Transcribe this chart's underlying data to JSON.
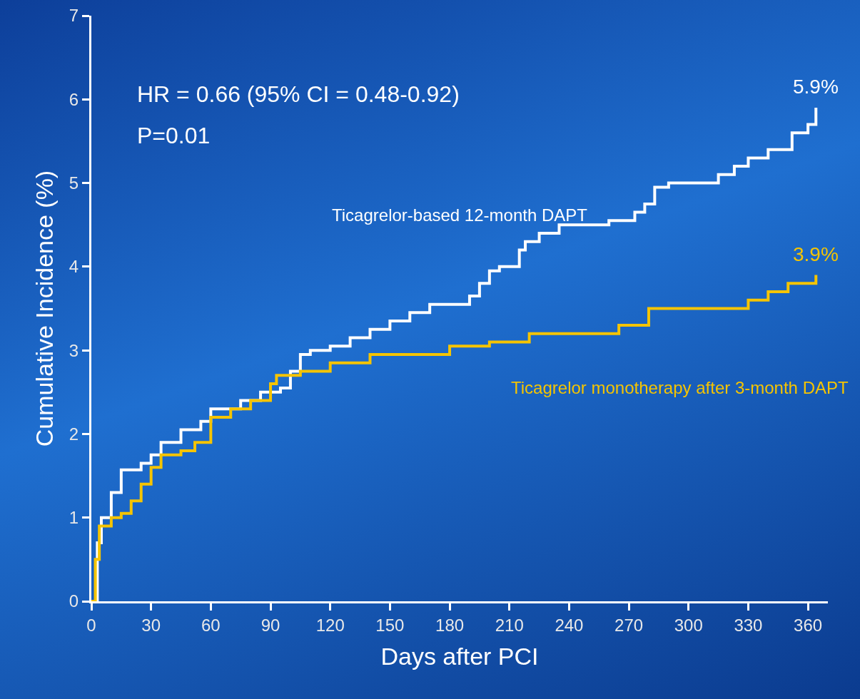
{
  "chart_data": {
    "type": "step",
    "xlabel": "Days after PCI",
    "ylabel": "Cumulative Incidence (%)",
    "xlim": [
      0,
      370
    ],
    "xticks": [
      0,
      30,
      60,
      90,
      120,
      150,
      180,
      210,
      240,
      270,
      300,
      330,
      360
    ],
    "ylim": [
      0,
      7
    ],
    "yticks": [
      0,
      1,
      2,
      3,
      4,
      5,
      6,
      7
    ],
    "grid": false,
    "legend": false,
    "marker": "none",
    "line_style": "solid",
    "series": [
      {
        "name": "Ticagrelor-based 12-month DAPT",
        "color": "#ffffff",
        "x": [
          0,
          3,
          5,
          10,
          15,
          25,
          30,
          35,
          45,
          55,
          60,
          75,
          85,
          95,
          100,
          105,
          110,
          120,
          130,
          140,
          150,
          160,
          170,
          190,
          195,
          200,
          205,
          215,
          218,
          225,
          235,
          260,
          273,
          278,
          283,
          290,
          315,
          323,
          330,
          340,
          352,
          360,
          364
        ],
        "values": [
          0,
          0.7,
          1.0,
          1.3,
          1.57,
          1.65,
          1.75,
          1.9,
          2.05,
          2.15,
          2.3,
          2.4,
          2.5,
          2.55,
          2.75,
          2.95,
          3.0,
          3.05,
          3.15,
          3.25,
          3.35,
          3.45,
          3.55,
          3.65,
          3.8,
          3.95,
          4.0,
          4.2,
          4.3,
          4.4,
          4.5,
          4.55,
          4.65,
          4.75,
          4.95,
          5.0,
          5.1,
          5.2,
          5.3,
          5.4,
          5.6,
          5.7,
          5.9
        ]
      },
      {
        "name": "Ticagrelor monotherapy after 3-month DAPT",
        "color": "#f5c400",
        "x": [
          0,
          2,
          4,
          10,
          15,
          20,
          25,
          30,
          35,
          45,
          52,
          60,
          70,
          80,
          90,
          93,
          105,
          120,
          140,
          180,
          200,
          220,
          265,
          280,
          330,
          340,
          350,
          364
        ],
        "values": [
          0,
          0.5,
          0.9,
          1.0,
          1.05,
          1.2,
          1.4,
          1.6,
          1.75,
          1.8,
          1.9,
          2.2,
          2.3,
          2.4,
          2.6,
          2.7,
          2.75,
          2.85,
          2.95,
          3.05,
          3.1,
          3.2,
          3.3,
          3.5,
          3.6,
          3.7,
          3.8,
          3.9
        ]
      }
    ],
    "annotations": [
      "HR = 0.66 (95% CI = 0.48-0.92)",
      "P=0.01",
      {
        "text": "5.9%",
        "x": 364,
        "y": 5.9
      },
      {
        "text": "3.9%",
        "x": 364,
        "y": 3.9
      }
    ]
  }
}
